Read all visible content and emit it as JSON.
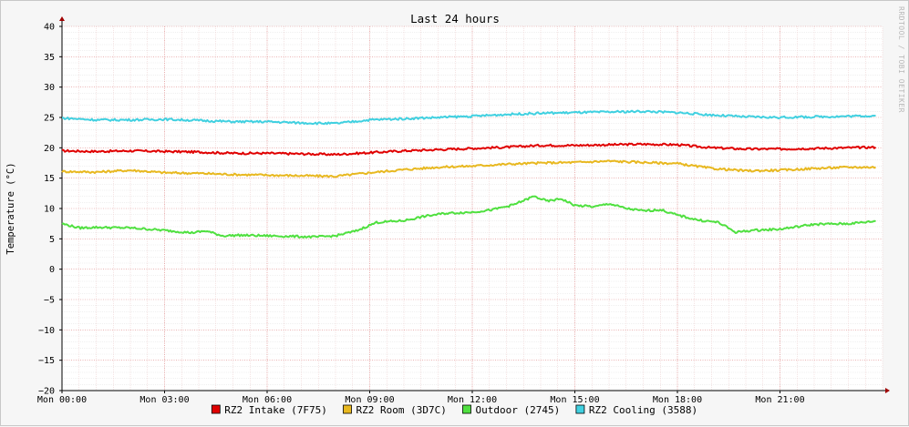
{
  "chart_data": {
    "type": "line",
    "title": "Last 24 hours",
    "ylabel": "Temperature (°C)",
    "xlabel": "",
    "ylim": [
      -20,
      40
    ],
    "xlim": [
      0,
      24
    ],
    "yticks": [
      -20,
      -15,
      -10,
      -5,
      0,
      5,
      10,
      15,
      20,
      25,
      30,
      35,
      40
    ],
    "xticks": [
      {
        "value": 0,
        "label": "Mon 00:00"
      },
      {
        "value": 3,
        "label": "Mon 03:00"
      },
      {
        "value": 6,
        "label": "Mon 06:00"
      },
      {
        "value": 9,
        "label": "Mon 09:00"
      },
      {
        "value": 12,
        "label": "Mon 12:00"
      },
      {
        "value": 15,
        "label": "Mon 15:00"
      },
      {
        "value": 18,
        "label": "Mon 18:00"
      },
      {
        "value": 21,
        "label": "Mon 21:00"
      }
    ],
    "grid": true,
    "legend_position": "bottom",
    "side_label": "RRDTOOL / TOBI OETIKER",
    "x_unit_note": "hours",
    "series": [
      {
        "name": "RZ2 Intake (7F75)",
        "color": "#e00000",
        "x": [
          0,
          1,
          2,
          3,
          4,
          5,
          6,
          7,
          8,
          9,
          10,
          11,
          12,
          13,
          14,
          15,
          16,
          17,
          18,
          19,
          20,
          21,
          22,
          23,
          23.8
        ],
        "y": [
          19.5,
          19.4,
          19.5,
          19.4,
          19.3,
          19.1,
          19.1,
          19.0,
          18.9,
          19.2,
          19.5,
          19.7,
          19.9,
          20.1,
          20.4,
          20.4,
          20.5,
          20.6,
          20.5,
          20.0,
          19.8,
          19.8,
          19.9,
          20.0,
          20.1
        ]
      },
      {
        "name": "RZ2 Room (3D7C)",
        "color": "#e8b820",
        "x": [
          0,
          1,
          2,
          3,
          4,
          5,
          6,
          7,
          8,
          9,
          10,
          11,
          12,
          13,
          14,
          15,
          16,
          17,
          18,
          19,
          20,
          21,
          22,
          23,
          23.8
        ],
        "y": [
          16.1,
          16.0,
          16.3,
          15.9,
          15.8,
          15.6,
          15.5,
          15.4,
          15.3,
          15.9,
          16.4,
          16.8,
          17.0,
          17.3,
          17.5,
          17.6,
          17.8,
          17.6,
          17.4,
          16.6,
          16.2,
          16.3,
          16.6,
          16.8,
          16.8
        ]
      },
      {
        "name": "Outdoor (2745)",
        "color": "#50e040",
        "x": [
          0,
          0.5,
          1,
          2,
          3,
          3.8,
          4.2,
          4.7,
          5.2,
          6,
          6.8,
          7.4,
          8,
          8.6,
          9.2,
          10,
          10.6,
          11.2,
          12,
          12.6,
          13.2,
          13.8,
          14.2,
          14.6,
          15,
          15.6,
          16,
          16.5,
          17,
          17.5,
          18,
          18.6,
          19.2,
          19.7,
          20.2,
          21,
          22,
          23,
          23.8
        ],
        "y": [
          7.5,
          6.8,
          6.9,
          6.8,
          6.4,
          6.0,
          6.3,
          5.5,
          5.6,
          5.5,
          5.4,
          5.3,
          5.5,
          6.3,
          7.7,
          8.0,
          8.7,
          9.2,
          9.4,
          9.8,
          10.6,
          12.0,
          11.2,
          11.6,
          10.5,
          10.3,
          10.8,
          10.0,
          9.6,
          9.8,
          8.9,
          8.1,
          7.7,
          6.1,
          6.4,
          6.6,
          7.4,
          7.5,
          7.9
        ]
      },
      {
        "name": "RZ2 Cooling (3588)",
        "color": "#40d0e0",
        "x": [
          0,
          1,
          2,
          3,
          4,
          5,
          6,
          7,
          8,
          9,
          10,
          11,
          12,
          13,
          14,
          15,
          16,
          17,
          18,
          19,
          20,
          21,
          22,
          23,
          23.8
        ],
        "y": [
          24.9,
          24.6,
          24.6,
          24.7,
          24.5,
          24.3,
          24.3,
          24.1,
          24.0,
          24.6,
          24.8,
          25.0,
          25.2,
          25.5,
          25.7,
          25.8,
          25.9,
          26.0,
          25.8,
          25.4,
          25.1,
          25.0,
          25.1,
          25.2,
          25.3
        ]
      }
    ]
  }
}
